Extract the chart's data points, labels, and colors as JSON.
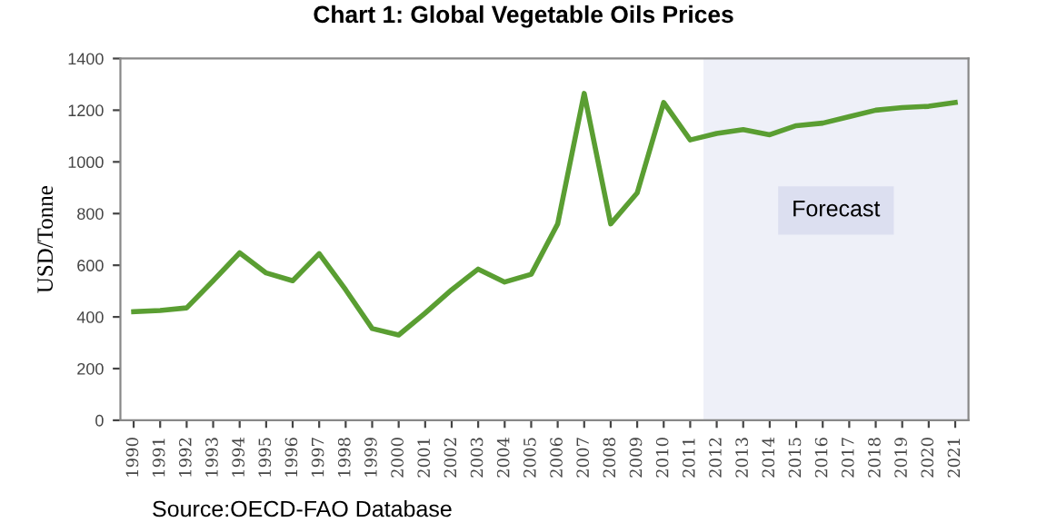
{
  "chart_data": {
    "type": "line",
    "title": "Chart 1: Global Vegetable Oils Prices",
    "ylabel": "USD/Tonne",
    "categories": [
      "1990",
      "1991",
      "1992",
      "1993",
      "1994",
      "1995",
      "1996",
      "1997",
      "1998",
      "1999",
      "2000",
      "2001",
      "2002",
      "2003",
      "2004",
      "2005",
      "2006",
      "2007",
      "2008",
      "2009",
      "2010",
      "2011",
      "2012",
      "2013",
      "2014",
      "2015",
      "2016",
      "2017",
      "2018",
      "2019",
      "2020",
      "2021"
    ],
    "series": [
      {
        "color": "#5a9e32",
        "values": [
          420,
          425,
          435,
          540,
          648,
          570,
          540,
          645,
          505,
          355,
          330,
          415,
          505,
          585,
          535,
          565,
          760,
          1265,
          760,
          880,
          1230,
          1085,
          1110,
          1125,
          1105,
          1140,
          1150,
          1175,
          1200,
          1210,
          1215,
          1230
        ]
      }
    ],
    "ylim": [
      0,
      1400
    ],
    "yticks": [
      0,
      200,
      400,
      600,
      800,
      1000,
      1200,
      1400
    ],
    "grid": false,
    "legend": false,
    "marker": "none",
    "line_style": "solid",
    "bands": [
      {
        "axis": "x",
        "from": "2012",
        "to": "2021",
        "label": "Forecast",
        "color": "#eef0f8"
      }
    ],
    "annotations": [
      "Source:OECD-FAO Database"
    ]
  }
}
